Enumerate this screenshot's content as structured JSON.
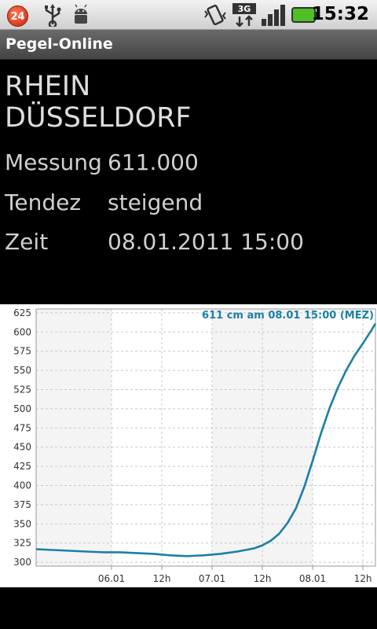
{
  "status_bar": {
    "notification_count": "24",
    "icons": [
      "usb-icon",
      "android-debug-icon",
      "vibrate-icon",
      "3g-icon",
      "signal-icon",
      "battery-icon"
    ],
    "network": "3G",
    "time": "15:32"
  },
  "app": {
    "title": "Pegel-Online"
  },
  "station": {
    "river": "RHEIN",
    "location": "DÜSSELDORF"
  },
  "info": {
    "measurement_label": "Messung",
    "measurement_value": "611.000",
    "trend_label": "Tendez",
    "trend_value": "steigend",
    "time_label": "Zeit",
    "time_value": "08.01.2011 15:00"
  },
  "colors": {
    "line": "#1b7fa8",
    "title": "#1b7fa8",
    "grid": "#c8c8c8",
    "shade": "#f4f4f4"
  },
  "chart_data": {
    "type": "line",
    "title": "611 cm am 08.01 15:00 (MEZ)",
    "xlabel": "",
    "ylabel": "",
    "ylim": [
      295,
      630
    ],
    "yticks": [
      300,
      325,
      350,
      375,
      400,
      425,
      450,
      475,
      500,
      525,
      550,
      575,
      600,
      625
    ],
    "xlim": [
      -18,
      63
    ],
    "xticks": [
      {
        "label": "06.01",
        "x": 0
      },
      {
        "label": "12h",
        "x": 12
      },
      {
        "label": "07.01",
        "x": 24
      },
      {
        "label": "12h",
        "x": 36
      },
      {
        "label": "08.01",
        "x": 48
      },
      {
        "label": "12h",
        "x": 60
      }
    ],
    "grid": true,
    "series": [
      {
        "x": [
          -18,
          -14,
          -10,
          -6,
          -2,
          2,
          6,
          10,
          14,
          18,
          22,
          26,
          30,
          34,
          36,
          38,
          40,
          42,
          44,
          46,
          48,
          50,
          52,
          54,
          56,
          58,
          60,
          62,
          63
        ],
        "values": [
          317,
          316,
          315,
          314,
          313,
          313,
          312,
          311,
          309,
          308,
          309,
          311,
          314,
          318,
          322,
          328,
          337,
          351,
          370,
          398,
          432,
          468,
          500,
          527,
          550,
          569,
          585,
          602,
          611
        ]
      }
    ]
  }
}
